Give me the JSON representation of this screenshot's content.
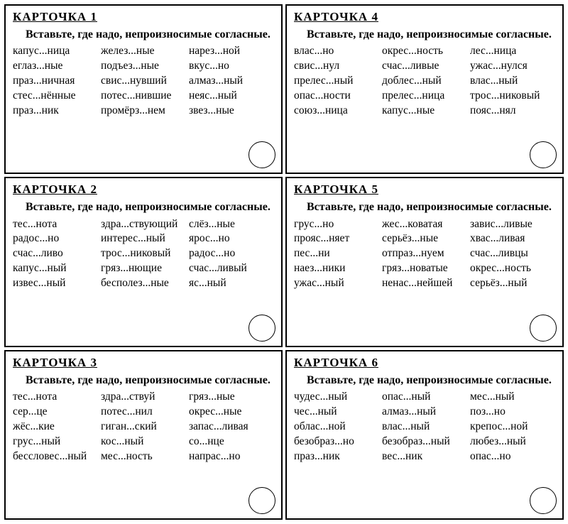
{
  "instruction": "Вставьте, где надо, непроизносимые согласные.",
  "title_prefix": "КАРТОЧКА",
  "colors": {
    "background": "#ffffff",
    "border": "#000000",
    "text": "#000000"
  },
  "typography": {
    "title_fontsize": 17,
    "instruction_fontsize": 16,
    "word_fontsize": 15.5,
    "font_family": "Times New Roman"
  },
  "layout": {
    "grid_cols": 2,
    "grid_rows": 3,
    "card_border_width": 2,
    "circle_diameter": 38
  },
  "cards": [
    {
      "number": "1",
      "columns": [
        [
          "капус...ница",
          "еглаз...ные",
          "праз...ничная",
          "стес...нённые",
          "праз...ник"
        ],
        [
          "желез...ные",
          "подъез...ные",
          "свис...нувший",
          "потес...нившие",
          "промёрз...нем"
        ],
        [
          "нарез...ной",
          "вкус...но",
          "алмаз...ный",
          "неяс...ный",
          "звез...ные"
        ]
      ]
    },
    {
      "number": "4",
      "columns": [
        [
          "влас...но",
          "свис...нул",
          "прелес...ный",
          "опас...ности",
          "союз...ница"
        ],
        [
          "окрес...ность",
          "счас...ливые",
          "доблес...ный",
          "прелес...ница",
          "капус...ные"
        ],
        [
          "лес...ница",
          "ужас...нулся",
          "влас...ный",
          "трос...никовый",
          "пояс...нял"
        ]
      ]
    },
    {
      "number": "2",
      "columns": [
        [
          "тес...нота",
          "радос...но",
          "счас...ливо",
          "капус...ный",
          "извес...ный"
        ],
        [
          "здра...ствующий",
          "интерес...ный",
          "трос...никовый",
          "гряз...нющие",
          "бесполез...ные"
        ],
        [
          "слёз...ные",
          "ярос...но",
          "радос...но",
          "счас...ливый",
          "яс...ный"
        ]
      ]
    },
    {
      "number": "5",
      "columns": [
        [
          "грус...но",
          "прояс...няет",
          "пес...ни",
          "наез...ники",
          "ужас...ный"
        ],
        [
          "жес...коватая",
          "серьёз...ные",
          "отпраз...нуем",
          "гряз...новатые",
          "ненас...нейшей"
        ],
        [
          "завис...ливые",
          "хвас...ливая",
          "счас...ливцы",
          "окрес...ность",
          "серьёз...ный"
        ]
      ]
    },
    {
      "number": "3",
      "columns": [
        [
          "тес...нота",
          "сер...це",
          "жёс...кие",
          "грус...ный",
          "бессловес...ный"
        ],
        [
          "здра...ствуй",
          "потес...нил",
          "гиган...ский",
          "кос...ный",
          "мес...ность"
        ],
        [
          "гряз...ные",
          "окрес...ные",
          "запас...ливая",
          "со...нце",
          "напрас...но"
        ]
      ]
    },
    {
      "number": "6",
      "columns": [
        [
          "чудес...ный",
          "чес...ный",
          "облас...ной",
          "безобраз...но",
          "праз...ник"
        ],
        [
          "опас...ный",
          "алмаз...ный",
          "влас...ный",
          "безобраз...ный",
          "вес...ник"
        ],
        [
          "мес...ный",
          "поз...но",
          "крепос...ной",
          "любез...ный",
          "опас...но"
        ]
      ]
    }
  ]
}
